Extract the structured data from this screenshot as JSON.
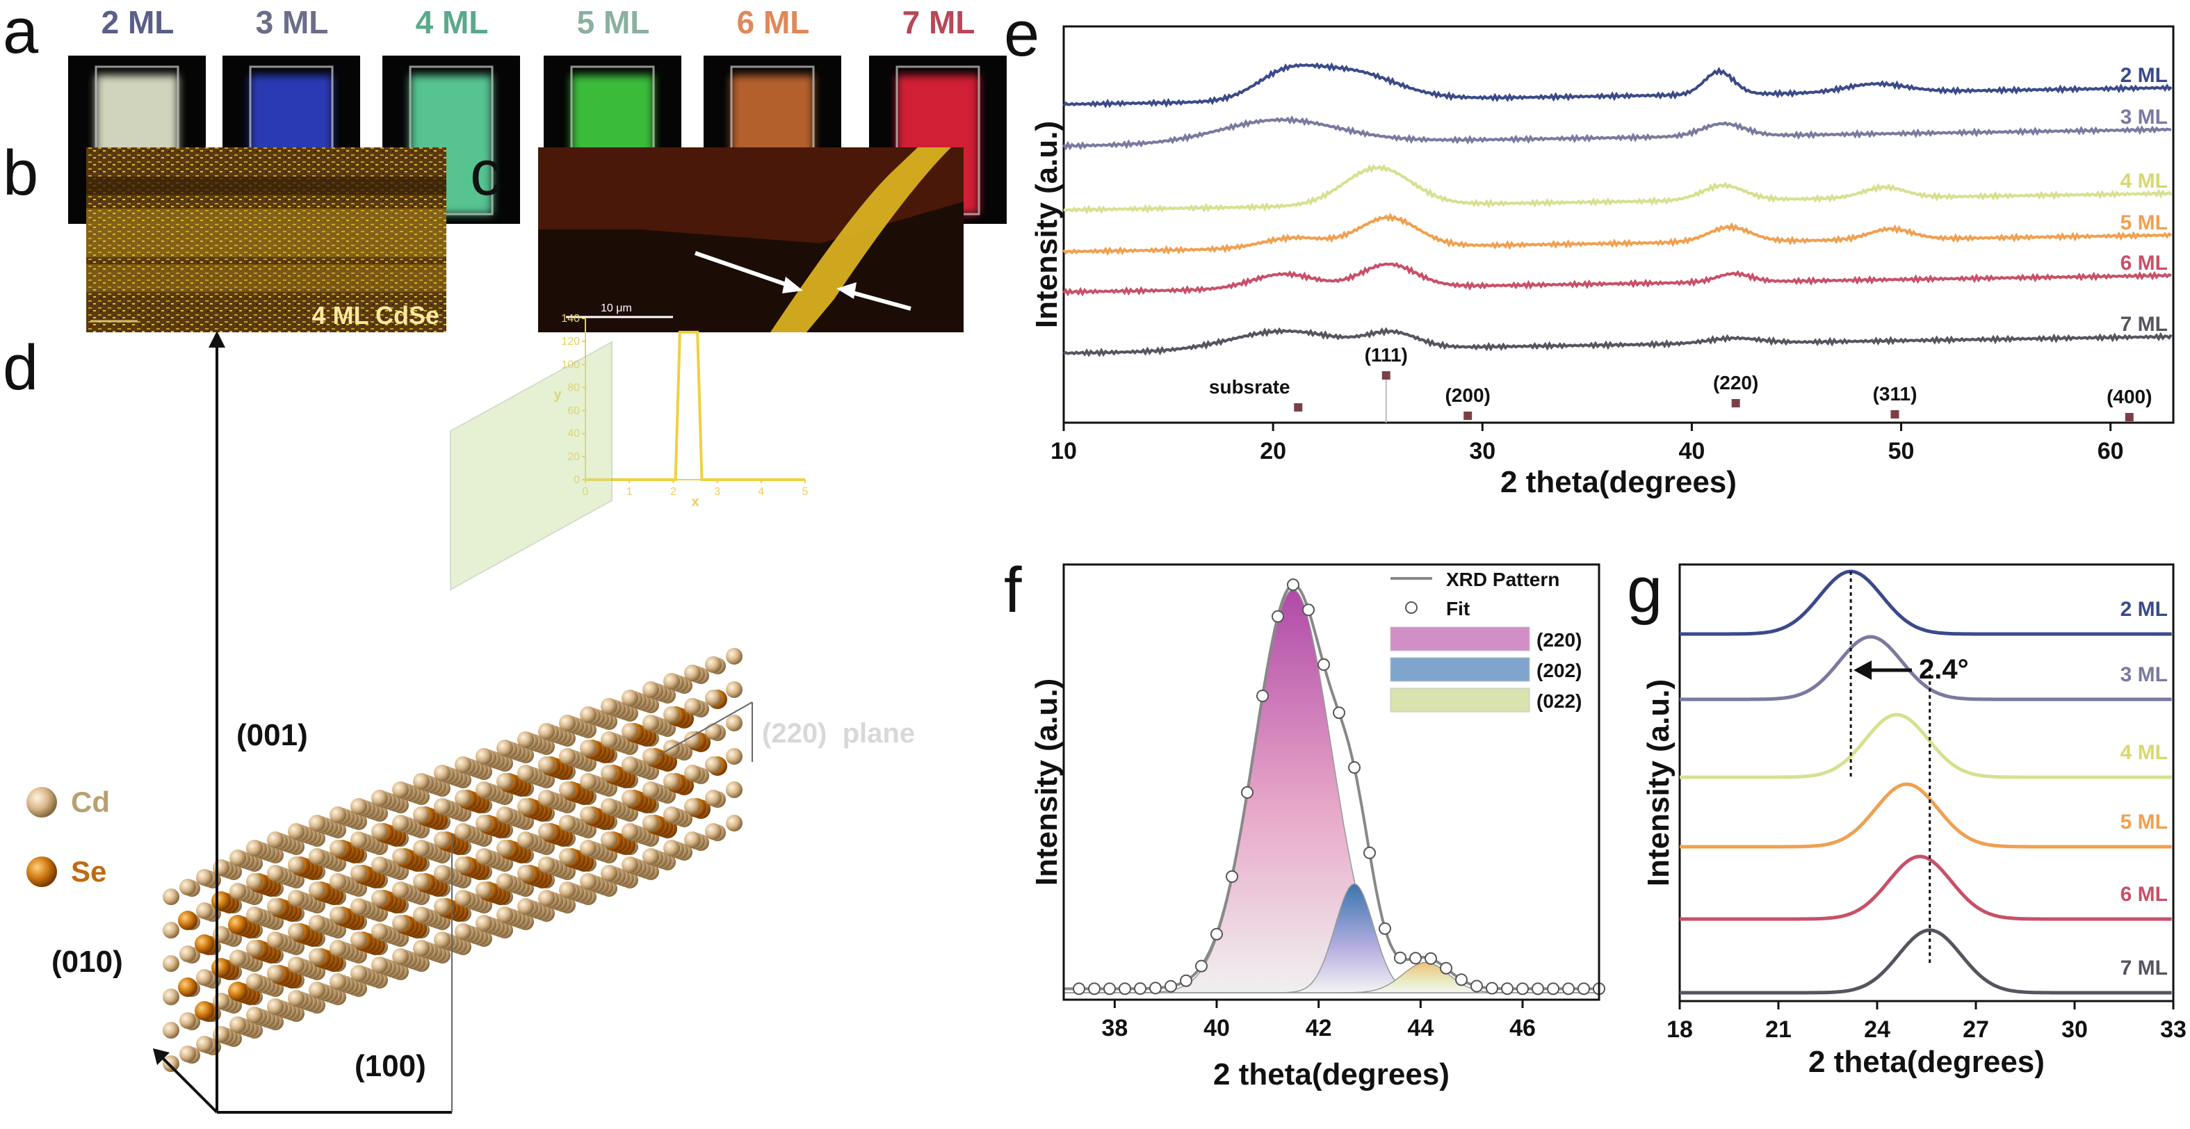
{
  "panel_letters": {
    "a": "a",
    "b": "b",
    "c": "c",
    "d": "d",
    "e": "e",
    "f": "f",
    "g": "g"
  },
  "panel_a": {
    "vials": [
      {
        "label": "2 ML",
        "label_color": "#5a5f8a",
        "glow": "#e8ebd0"
      },
      {
        "label": "3 ML",
        "label_color": "#6b6d8a",
        "glow": "#2f3fc8"
      },
      {
        "label": "4 ML",
        "label_color": "#5aa98a",
        "glow": "#5fd8a0"
      },
      {
        "label": "5 ML",
        "label_color": "#8ab0a0",
        "glow": "#3fd040"
      },
      {
        "label": "6 ML",
        "label_color": "#e0885a",
        "glow": "#c86a30"
      },
      {
        "label": "7 ML",
        "label_color": "#b84858",
        "glow": "#e8203a"
      }
    ]
  },
  "panel_b": {
    "caption": "4 ML CdSe"
  },
  "panel_c": {
    "scale_text": "10 μm",
    "inset": {
      "xlabel": "x",
      "ylabel": "y",
      "xticks": [
        "0",
        "1",
        "2",
        "3",
        "4",
        "5"
      ],
      "yticks": [
        "0",
        "20",
        "40",
        "60",
        "80",
        "100",
        "120",
        "140"
      ],
      "profile_x": [
        0,
        2.05,
        2.15,
        2.55,
        2.65,
        5
      ],
      "profile_y": [
        0,
        0,
        128,
        128,
        0,
        0
      ]
    }
  },
  "panel_d": {
    "axis_001": "(001)",
    "axis_010": "(010)",
    "axis_100": "(100)",
    "plane_label": "(220)  plane",
    "legend": [
      {
        "label": "Cd",
        "color": "#d9b88a"
      },
      {
        "label": "Se",
        "color": "#d07a10"
      }
    ]
  },
  "chart_data": [
    {
      "panel": "e",
      "type": "line",
      "xlabel": "2 theta(degrees)",
      "ylabel": "Intensity (a.u.)",
      "xlim": [
        10,
        63
      ],
      "xticks": [
        10,
        20,
        30,
        40,
        50,
        60
      ],
      "series": [
        {
          "name": "2 ML",
          "color": "#3a4a8a",
          "offset": 6,
          "peaks": [
            [
              20.5,
              0.5,
              1.4
            ],
            [
              23.5,
              0.7,
              2.2
            ],
            [
              41.3,
              0.55,
              0.7
            ],
            [
              48.8,
              0.2,
              1.4
            ]
          ]
        },
        {
          "name": "3 ML",
          "color": "#7a7aa0",
          "offset": 5,
          "peaks": [
            [
              20.3,
              0.55,
              2.8
            ],
            [
              41.5,
              0.3,
              1.0
            ]
          ]
        },
        {
          "name": "4 ML",
          "color": "#d8e090",
          "offset": 4,
          "peaks": [
            [
              25.0,
              0.9,
              1.6
            ],
            [
              41.5,
              0.35,
              1.0
            ],
            [
              49.2,
              0.25,
              1.0
            ]
          ]
        },
        {
          "name": "5 ML",
          "color": "#f0a050",
          "offset": 3,
          "peaks": [
            [
              21.0,
              0.25,
              1.5
            ],
            [
              25.5,
              0.7,
              1.4
            ],
            [
              41.8,
              0.35,
              1.0
            ],
            [
              49.5,
              0.25,
              1.0
            ]
          ]
        },
        {
          "name": "6 ML",
          "color": "#c85068",
          "offset": 2,
          "peaks": [
            [
              20.5,
              0.35,
              1.5
            ],
            [
              25.5,
              0.55,
              1.3
            ],
            [
              42.0,
              0.2,
              0.8
            ]
          ]
        },
        {
          "name": "7 ML",
          "color": "#555560",
          "offset": 1,
          "peaks": [
            [
              20.5,
              0.45,
              2.5
            ],
            [
              25.7,
              0.35,
              1.2
            ],
            [
              42.0,
              0.12,
              1.2
            ]
          ]
        }
      ],
      "reference_peaks": [
        {
          "label": "subsrate",
          "x": 21.2
        },
        {
          "label": "(111)",
          "x": 25.4
        },
        {
          "label": "(200)",
          "x": 29.3
        },
        {
          "label": "(220)",
          "x": 42.1
        },
        {
          "label": "(311)",
          "x": 49.7
        },
        {
          "label": "(400)",
          "x": 60.9
        }
      ]
    },
    {
      "panel": "f",
      "type": "line",
      "xlabel": "2 theta(degrees)",
      "ylabel": "Intensity (a.u.)",
      "xlim": [
        37,
        47.5
      ],
      "xticks": [
        38,
        40,
        42,
        44,
        46
      ],
      "legend": [
        {
          "name": "XRD Pattern",
          "color": "#888888"
        },
        {
          "name": "Fit",
          "color": "#555555"
        },
        {
          "name": "(220)",
          "color": "#c060b0"
        },
        {
          "name": "(202)",
          "color": "#4a80b8"
        },
        {
          "name": "(022)",
          "color": "#c8d890"
        }
      ],
      "components": [
        {
          "name": "(220)",
          "center": 41.5,
          "height": 1.0,
          "sigma": 0.75
        },
        {
          "name": "(202)",
          "center": 42.7,
          "height": 0.27,
          "sigma": 0.38
        },
        {
          "name": "(022)",
          "center": 44.1,
          "height": 0.075,
          "sigma": 0.45
        }
      ]
    },
    {
      "panel": "g",
      "type": "line",
      "xlabel": "2 theta(degrees)",
      "ylabel": "Intensity (a.u.)",
      "xlim": [
        18,
        33
      ],
      "xticks": [
        18,
        21,
        24,
        27,
        30,
        33
      ],
      "series": [
        {
          "name": "2 ML",
          "color": "#3a4a8a",
          "center": 23.2
        },
        {
          "name": "3 ML",
          "color": "#7a7aa0",
          "center": 23.8
        },
        {
          "name": "4 ML",
          "color": "#d8e090",
          "center": 24.6
        },
        {
          "name": "5 ML",
          "color": "#f0a050",
          "center": 24.9
        },
        {
          "name": "6 ML",
          "color": "#c85068",
          "center": 25.3
        },
        {
          "name": "7 ML",
          "color": "#555560",
          "center": 25.6
        }
      ],
      "annotation": "2.4°"
    }
  ]
}
